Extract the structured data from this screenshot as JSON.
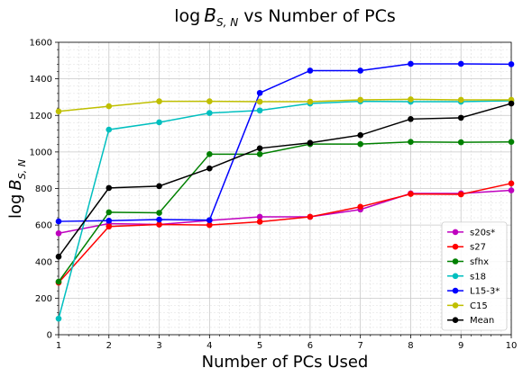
{
  "chart_data": {
    "type": "line",
    "title_main": "log",
    "title_sub": "S, N",
    "title_rest": " vs Number of PCs",
    "xlabel": "Number of PCs Used",
    "ylabel_main": "log",
    "ylabel_sub": "S, N",
    "xlim": [
      1,
      10
    ],
    "ylim": [
      0,
      1600
    ],
    "x": [
      1,
      2,
      3,
      4,
      5,
      6,
      7,
      8,
      9,
      10
    ],
    "xticks": [
      "1",
      "2",
      "3",
      "4",
      "5",
      "6",
      "7",
      "8",
      "9",
      "10"
    ],
    "yticks": [
      "0",
      "200",
      "400",
      "600",
      "800",
      "1000",
      "1200",
      "1400",
      "1600"
    ],
    "grid": true,
    "legend_position": "lower-right",
    "series": [
      {
        "name": "s20s*",
        "color": "#bf00bf",
        "values": [
          555,
          608,
          603,
          625,
          645,
          645,
          685,
          773,
          773,
          790
        ]
      },
      {
        "name": "s27",
        "color": "#ff0000",
        "values": [
          285,
          592,
          603,
          600,
          618,
          645,
          700,
          770,
          768,
          828
        ]
      },
      {
        "name": "sfhx",
        "color": "#008000",
        "values": [
          290,
          670,
          667,
          988,
          988,
          1043,
          1043,
          1055,
          1053,
          1055
        ]
      },
      {
        "name": "s18",
        "color": "#00bfbf",
        "values": [
          88,
          1122,
          1162,
          1213,
          1227,
          1265,
          1277,
          1275,
          1275,
          1280
        ]
      },
      {
        "name": "L15-3*",
        "color": "#0000ff",
        "values": [
          620,
          624,
          630,
          627,
          1323,
          1445,
          1445,
          1482,
          1482,
          1480
        ]
      },
      {
        "name": "C15",
        "color": "#bfbf00",
        "values": [
          1222,
          1250,
          1277,
          1277,
          1275,
          1275,
          1285,
          1288,
          1285,
          1285
        ]
      },
      {
        "name": "Mean",
        "color": "#000000",
        "values": [
          427,
          803,
          813,
          910,
          1020,
          1050,
          1092,
          1180,
          1187,
          1265
        ]
      }
    ]
  }
}
